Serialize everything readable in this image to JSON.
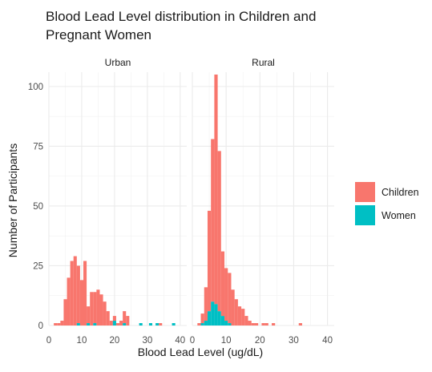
{
  "chart_data": {
    "type": "bar",
    "title": [
      "Blood Lead Level distribution in Children and",
      "Pregnant Women"
    ],
    "xlabel": "Blood Lead Level (ug/dL)",
    "ylabel": "Number of Participants",
    "xlim": [
      0,
      42
    ],
    "ylim": [
      0,
      106
    ],
    "xticks": [
      0,
      10,
      20,
      30,
      40
    ],
    "yticks": [
      0,
      25,
      50,
      75,
      100
    ],
    "grid": true,
    "stacked": true,
    "bin_width": 1,
    "legend_position": "right",
    "series": [
      {
        "name": "Children",
        "color": "#F8766D"
      },
      {
        "name": "Women",
        "color": "#00BFC4"
      }
    ],
    "panels": [
      {
        "label": "Urban",
        "bins": [
          {
            "x": 2,
            "children": 1,
            "women": 0
          },
          {
            "x": 3,
            "children": 1,
            "women": 0
          },
          {
            "x": 4,
            "children": 2,
            "women": 0
          },
          {
            "x": 5,
            "children": 11,
            "women": 0
          },
          {
            "x": 6,
            "children": 20,
            "women": 0
          },
          {
            "x": 7,
            "children": 27,
            "women": 0
          },
          {
            "x": 8,
            "children": 29,
            "women": 0
          },
          {
            "x": 9,
            "children": 24,
            "women": 1
          },
          {
            "x": 10,
            "children": 19,
            "women": 0
          },
          {
            "x": 11,
            "children": 27,
            "women": 0
          },
          {
            "x": 12,
            "children": 7,
            "women": 1
          },
          {
            "x": 13,
            "children": 14,
            "women": 0
          },
          {
            "x": 14,
            "children": 13,
            "women": 1
          },
          {
            "x": 15,
            "children": 15,
            "women": 0
          },
          {
            "x": 16,
            "children": 13,
            "women": 0
          },
          {
            "x": 17,
            "children": 10,
            "women": 0
          },
          {
            "x": 18,
            "children": 6,
            "women": 0
          },
          {
            "x": 19,
            "children": 2,
            "women": 0
          },
          {
            "x": 20,
            "children": 2,
            "women": 2
          },
          {
            "x": 21,
            "children": 1,
            "women": 0
          },
          {
            "x": 22,
            "children": 2,
            "women": 0
          },
          {
            "x": 23,
            "children": 5,
            "women": 1
          },
          {
            "x": 24,
            "children": 4,
            "women": 0
          },
          {
            "x": 28,
            "children": 0,
            "women": 1
          },
          {
            "x": 31,
            "children": 0,
            "women": 1
          },
          {
            "x": 33,
            "children": 0,
            "women": 1
          },
          {
            "x": 34,
            "children": 1,
            "women": 0
          },
          {
            "x": 38,
            "children": 0,
            "women": 1
          }
        ]
      },
      {
        "label": "Rural",
        "bins": [
          {
            "x": 2,
            "children": 1,
            "women": 0
          },
          {
            "x": 3,
            "children": 4,
            "women": 1
          },
          {
            "x": 4,
            "children": 14,
            "women": 2
          },
          {
            "x": 5,
            "children": 42,
            "women": 6
          },
          {
            "x": 6,
            "children": 68,
            "women": 10
          },
          {
            "x": 7,
            "children": 96,
            "women": 9
          },
          {
            "x": 8,
            "children": 67,
            "women": 6
          },
          {
            "x": 9,
            "children": 27,
            "women": 4
          },
          {
            "x": 10,
            "children": 22,
            "women": 2
          },
          {
            "x": 11,
            "children": 21,
            "women": 1
          },
          {
            "x": 12,
            "children": 15,
            "women": 0
          },
          {
            "x": 13,
            "children": 11,
            "women": 0
          },
          {
            "x": 14,
            "children": 8,
            "women": 0
          },
          {
            "x": 15,
            "children": 7,
            "women": 0
          },
          {
            "x": 16,
            "children": 4,
            "women": 0
          },
          {
            "x": 17,
            "children": 2,
            "women": 0
          },
          {
            "x": 18,
            "children": 1,
            "women": 0
          },
          {
            "x": 19,
            "children": 1,
            "women": 0
          },
          {
            "x": 21,
            "children": 1,
            "women": 0
          },
          {
            "x": 22,
            "children": 1,
            "women": 0
          },
          {
            "x": 24,
            "children": 1,
            "women": 0
          },
          {
            "x": 32,
            "children": 1,
            "women": 0
          }
        ]
      }
    ]
  }
}
